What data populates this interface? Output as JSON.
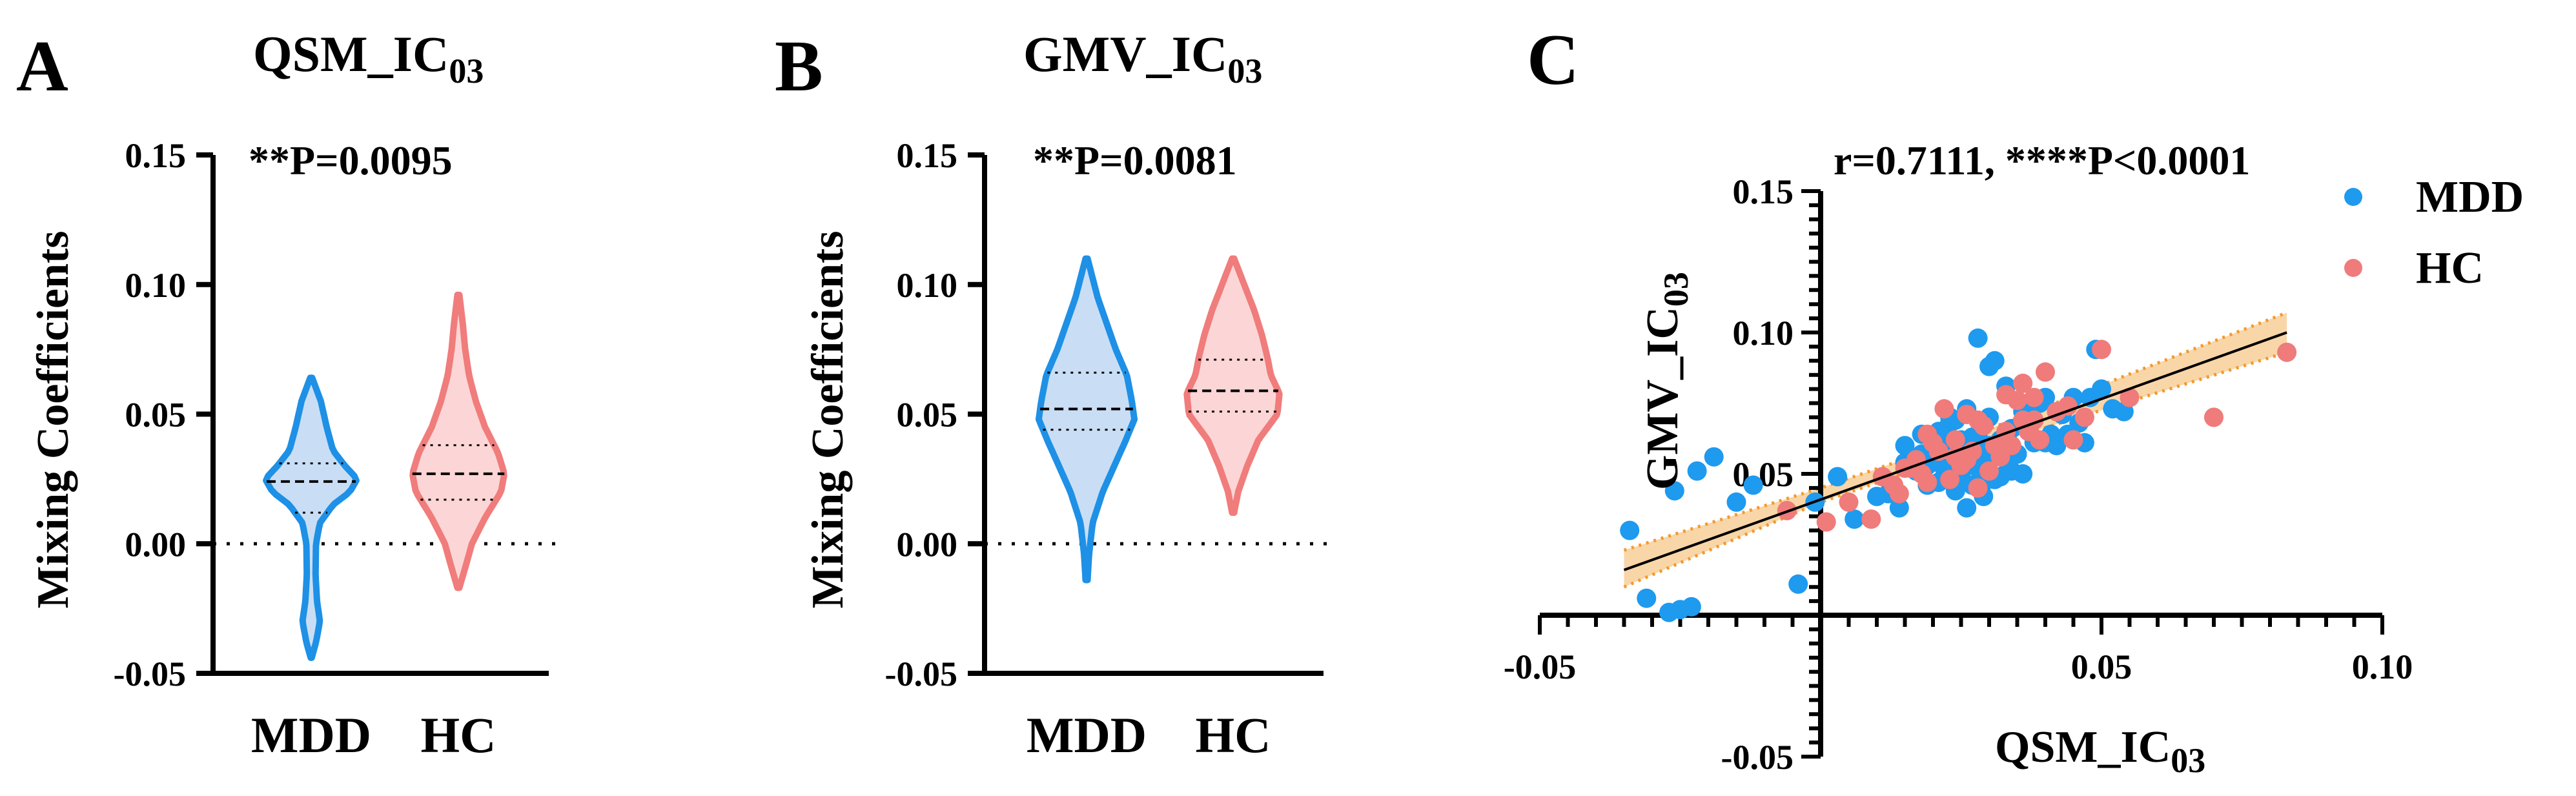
{
  "colors": {
    "mdd_line": "#1E90E6",
    "mdd_fill": "#C9DEF5",
    "hc_line": "#F07C7C",
    "hc_fill": "#FCD6D6",
    "mdd_dot": "#1E9AEF",
    "hc_dot": "#EF7B7B",
    "ci_fill": "#F9D6A8",
    "ci_line": "#F29A2E",
    "fit_line": "#000000"
  },
  "chart_data": [
    {
      "type": "violin",
      "panel": "A",
      "title": "QSM_IC",
      "title_sub": "03",
      "annotation": "**P=0.0095",
      "ylabel": "Mixing Coefficients",
      "ylim": [
        -0.05,
        0.15
      ],
      "yticks": [
        -0.05,
        0.0,
        0.05,
        0.1,
        0.15
      ],
      "ytick_labels": [
        "-0.05",
        "0.00",
        "0.05",
        "0.10",
        "0.15"
      ],
      "reference_line": 0.0,
      "categories": [
        "MDD",
        "HC"
      ],
      "series": [
        {
          "name": "MDD",
          "median": 0.024,
          "q1": 0.012,
          "q3": 0.031,
          "min": -0.044,
          "max": 0.064,
          "density": [
            [
              -0.044,
              0.01
            ],
            [
              -0.038,
              0.1
            ],
            [
              -0.03,
              0.18
            ],
            [
              -0.022,
              0.12
            ],
            [
              -0.012,
              0.09
            ],
            [
              0.0,
              0.1
            ],
            [
              0.008,
              0.18
            ],
            [
              0.015,
              0.45
            ],
            [
              0.02,
              0.8
            ],
            [
              0.025,
              0.95
            ],
            [
              0.03,
              0.7
            ],
            [
              0.036,
              0.45
            ],
            [
              0.045,
              0.32
            ],
            [
              0.055,
              0.2
            ],
            [
              0.064,
              0.02
            ]
          ]
        },
        {
          "name": "HC",
          "median": 0.027,
          "q1": 0.017,
          "q3": 0.038,
          "min": -0.017,
          "max": 0.096,
          "density": [
            [
              -0.017,
              0.02
            ],
            [
              -0.008,
              0.16
            ],
            [
              0.0,
              0.28
            ],
            [
              0.01,
              0.55
            ],
            [
              0.02,
              0.88
            ],
            [
              0.027,
              0.95
            ],
            [
              0.035,
              0.82
            ],
            [
              0.045,
              0.55
            ],
            [
              0.055,
              0.36
            ],
            [
              0.065,
              0.22
            ],
            [
              0.075,
              0.14
            ],
            [
              0.085,
              0.09
            ],
            [
              0.096,
              0.02
            ]
          ]
        }
      ]
    },
    {
      "type": "violin",
      "panel": "B",
      "title": "GMV_IC",
      "title_sub": "03",
      "annotation": "**P=0.0081",
      "ylabel": "Mixing Coefficients",
      "ylim": [
        -0.05,
        0.15
      ],
      "yticks": [
        -0.05,
        0.0,
        0.05,
        0.1,
        0.15
      ],
      "ytick_labels": [
        "-0.05",
        "0.00",
        "0.05",
        "0.10",
        "0.15"
      ],
      "reference_line": 0.0,
      "categories": [
        "MDD",
        "HC"
      ],
      "series": [
        {
          "name": "MDD",
          "median": 0.052,
          "q1": 0.044,
          "q3": 0.066,
          "min": -0.014,
          "max": 0.11,
          "density": [
            [
              -0.014,
              0.02
            ],
            [
              -0.004,
              0.05
            ],
            [
              0.008,
              0.12
            ],
            [
              0.02,
              0.32
            ],
            [
              0.03,
              0.55
            ],
            [
              0.04,
              0.78
            ],
            [
              0.048,
              0.95
            ],
            [
              0.055,
              0.9
            ],
            [
              0.065,
              0.8
            ],
            [
              0.075,
              0.58
            ],
            [
              0.085,
              0.4
            ],
            [
              0.095,
              0.22
            ],
            [
              0.11,
              0.02
            ]
          ]
        },
        {
          "name": "HC",
          "median": 0.059,
          "q1": 0.051,
          "q3": 0.071,
          "min": 0.012,
          "max": 0.11,
          "density": [
            [
              0.012,
              0.02
            ],
            [
              0.02,
              0.1
            ],
            [
              0.03,
              0.28
            ],
            [
              0.04,
              0.5
            ],
            [
              0.05,
              0.88
            ],
            [
              0.058,
              0.92
            ],
            [
              0.065,
              0.75
            ],
            [
              0.072,
              0.68
            ],
            [
              0.08,
              0.58
            ],
            [
              0.09,
              0.42
            ],
            [
              0.1,
              0.22
            ],
            [
              0.11,
              0.02
            ]
          ]
        }
      ]
    },
    {
      "type": "scatter",
      "panel": "C",
      "annotation": "r=0.7111, ****P<0.0001",
      "xlabel": "QSM_IC",
      "xlabel_sub": "03",
      "ylabel": "GMV_IC",
      "ylabel_sub": "03",
      "xlim": [
        -0.05,
        0.1
      ],
      "ylim": [
        -0.05,
        0.15
      ],
      "xticks": [
        -0.05,
        0.05,
        0.1
      ],
      "xtick_labels": [
        "-0.05",
        "0.05",
        "0.10"
      ],
      "yticks": [
        -0.05,
        0.05,
        0.1,
        0.15
      ],
      "ytick_labels": [
        "-0.05",
        "0.05",
        "0.10",
        "0.15"
      ],
      "legend": [
        "MDD",
        "HC"
      ],
      "fit": {
        "x": [
          -0.035,
          0.083
        ],
        "y": [
          0.016,
          0.1
        ]
      },
      "ci": {
        "x": [
          -0.035,
          0.0,
          0.025,
          0.083
        ],
        "lower": [
          0.01,
          0.04,
          0.057,
          0.093
        ],
        "upper": [
          0.023,
          0.045,
          0.062,
          0.107
        ]
      },
      "series": [
        {
          "name": "MDD",
          "x": [
            -0.034,
            -0.031,
            -0.027,
            -0.026,
            -0.025,
            -0.023,
            -0.022,
            -0.019,
            -0.015,
            -0.012,
            -0.004,
            -0.001,
            0.003,
            0.006,
            0.01,
            0.012,
            0.014,
            0.015,
            0.017,
            0.018,
            0.019,
            0.02,
            0.021,
            0.021,
            0.022,
            0.023,
            0.024,
            0.024,
            0.025,
            0.025,
            0.026,
            0.026,
            0.027,
            0.027,
            0.028,
            0.028,
            0.029,
            0.029,
            0.03,
            0.03,
            0.031,
            0.031,
            0.032,
            0.033,
            0.033,
            0.034,
            0.035,
            0.036,
            0.036,
            0.037,
            0.038,
            0.039,
            0.04,
            0.041,
            0.042,
            0.043,
            0.045,
            0.046,
            0.047,
            0.048,
            0.05,
            0.052,
            0.054,
            0.018,
            0.02,
            0.023,
            0.026,
            0.029,
            0.031,
            0.034,
            0.022,
            0.027,
            0.032,
            0.015,
            0.037,
            0.019,
            0.025,
            0.03,
            0.035,
            0.028,
            0.04,
            0.044,
            0.024,
            0.049
          ],
          "y": [
            0.03,
            0.006,
            0.001,
            0.044,
            0.002,
            0.003,
            0.051,
            0.056,
            0.04,
            0.046,
            0.011,
            0.04,
            0.049,
            0.034,
            0.042,
            0.043,
            0.038,
            0.06,
            0.051,
            0.064,
            0.053,
            0.056,
            0.047,
            0.065,
            0.052,
            0.07,
            0.058,
            0.044,
            0.062,
            0.049,
            0.073,
            0.038,
            0.059,
            0.046,
            0.064,
            0.052,
            0.057,
            0.042,
            0.07,
            0.06,
            0.09,
            0.048,
            0.062,
            0.055,
            0.081,
            0.066,
            0.057,
            0.072,
            0.05,
            0.066,
            0.061,
            0.075,
            0.077,
            0.064,
            0.06,
            0.071,
            0.077,
            0.068,
            0.061,
            0.077,
            0.08,
            0.073,
            0.072,
            0.057,
            0.061,
            0.068,
            0.055,
            0.047,
            0.057,
            0.051,
            0.062,
            0.063,
            0.049,
            0.054,
            0.073,
            0.046,
            0.055,
            0.088,
            0.057,
            0.098,
            0.061,
            0.064,
            0.069,
            0.094
          ]
        },
        {
          "name": "HC",
          "x": [
            -0.006,
            0.001,
            0.005,
            0.009,
            0.011,
            0.013,
            0.014,
            0.016,
            0.017,
            0.018,
            0.019,
            0.02,
            0.021,
            0.022,
            0.023,
            0.024,
            0.025,
            0.026,
            0.027,
            0.028,
            0.029,
            0.03,
            0.031,
            0.032,
            0.033,
            0.034,
            0.035,
            0.036,
            0.037,
            0.038,
            0.039,
            0.04,
            0.042,
            0.044,
            0.045,
            0.047,
            0.05,
            0.055,
            0.07,
            0.083,
            0.019,
            0.024,
            0.028,
            0.033,
            0.038,
            0.015,
            0.026,
            0.036
          ],
          "y": [
            0.037,
            0.033,
            0.04,
            0.034,
            0.049,
            0.046,
            0.043,
            0.052,
            0.055,
            0.05,
            0.047,
            0.061,
            0.058,
            0.073,
            0.048,
            0.062,
            0.053,
            0.071,
            0.058,
            0.045,
            0.067,
            0.051,
            0.06,
            0.056,
            0.078,
            0.06,
            0.076,
            0.082,
            0.065,
            0.069,
            0.062,
            0.086,
            0.072,
            0.074,
            0.062,
            0.07,
            0.094,
            0.077,
            0.07,
            0.093,
            0.064,
            0.056,
            0.069,
            0.065,
            0.077,
            0.052,
            0.055,
            0.069
          ]
        }
      ]
    }
  ]
}
